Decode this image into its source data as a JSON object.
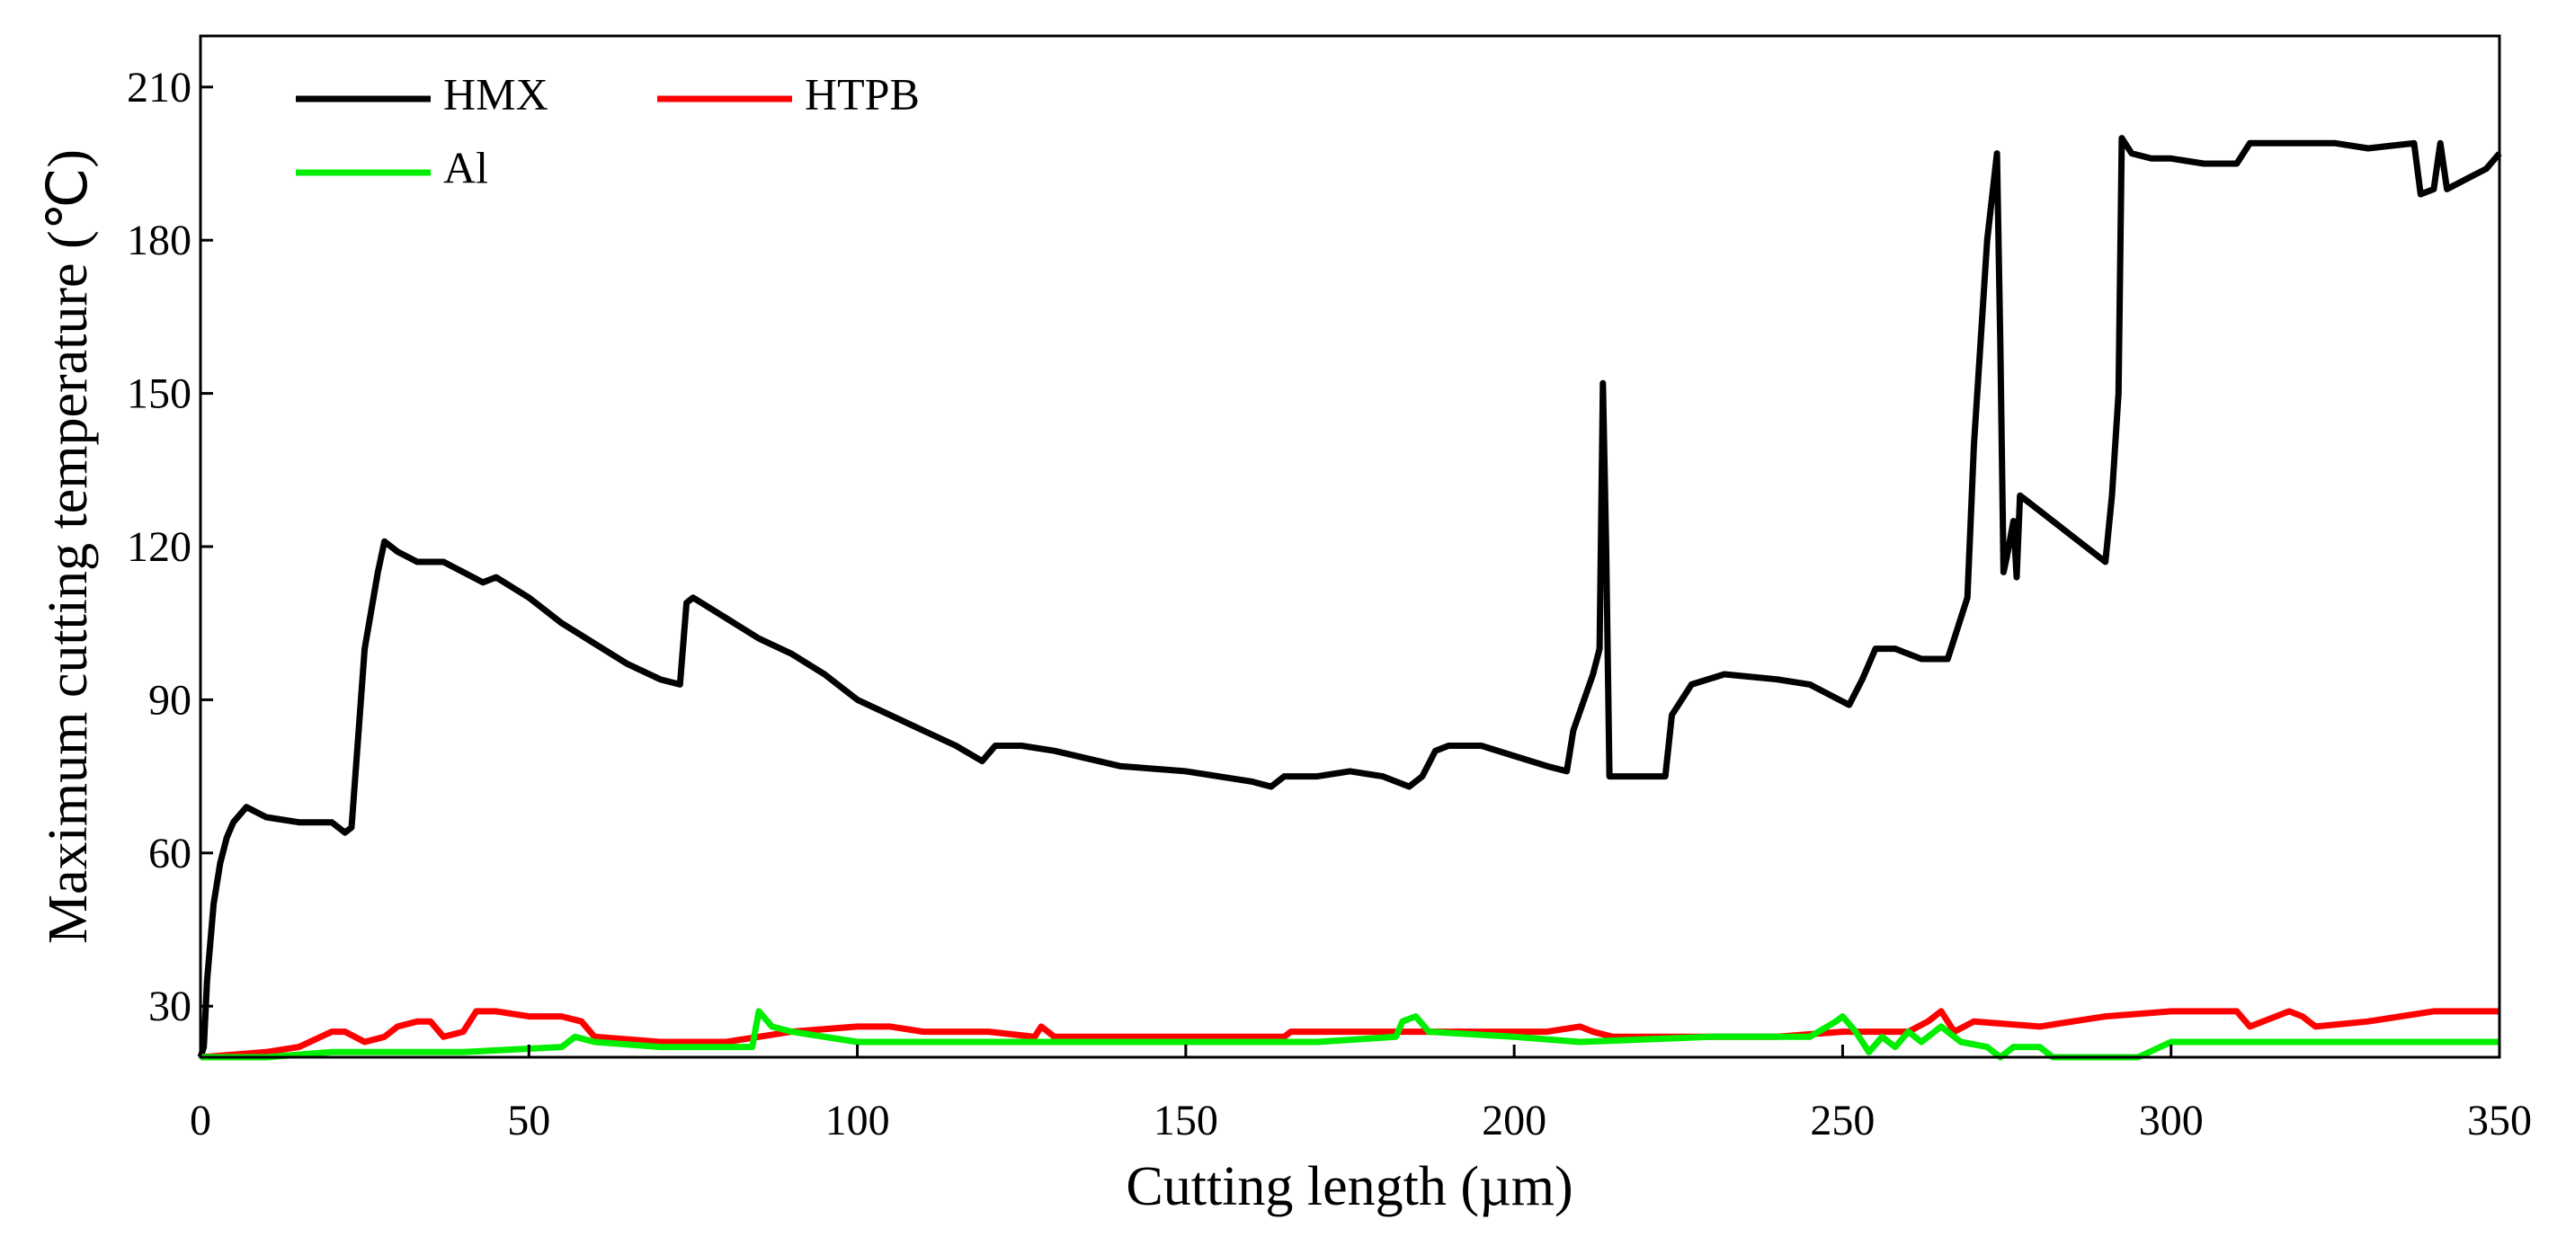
{
  "chart_data": {
    "type": "line",
    "x_label": "Cutting length (µm)",
    "y_label": "Maximum cutting temperature (℃)",
    "xlim": [
      0,
      350
    ],
    "ylim": [
      20,
      220
    ],
    "xticks": [
      0,
      50,
      100,
      150,
      200,
      250,
      300,
      350
    ],
    "yticks": [
      30,
      60,
      90,
      120,
      150,
      180,
      210
    ],
    "grid": false,
    "legend": "upper left",
    "series": [
      {
        "name": "HMX",
        "color": "#000000",
        "x": [
          0,
          0.5,
          1,
          2,
          3,
          4,
          5,
          7,
          10,
          15,
          20,
          22,
          23,
          25,
          27,
          28,
          30,
          33,
          37,
          40,
          43,
          45,
          50,
          55,
          60,
          65,
          70,
          73,
          74,
          75,
          80,
          85,
          90,
          95,
          100,
          105,
          110,
          115,
          119,
          121,
          125,
          130,
          140,
          150,
          160,
          163,
          165,
          170,
          175,
          180,
          184,
          186,
          188,
          190,
          195,
          200,
          205,
          208,
          209,
          212,
          213,
          213.5,
          214,
          214.5,
          216,
          223,
          224,
          227,
          232,
          240,
          245,
          251,
          253,
          255,
          258,
          262,
          266,
          269,
          270,
          272,
          273.5,
          274,
          274.5,
          275,
          276,
          276.5,
          277,
          280,
          285,
          290,
          291,
          292,
          292.5,
          294,
          297,
          300,
          305,
          310,
          312,
          320,
          325,
          330,
          337,
          338,
          340,
          341,
          342,
          345,
          348,
          350
        ],
        "values": [
          20,
          22,
          35,
          50,
          58,
          63,
          66,
          69,
          67,
          66,
          66,
          64,
          65,
          100,
          115,
          121,
          119,
          117,
          117,
          115,
          113,
          114,
          110,
          105,
          101,
          97,
          94,
          93,
          109,
          110,
          106,
          102,
          99,
          95,
          90,
          87,
          84,
          81,
          78,
          81,
          81,
          80,
          77,
          76,
          74,
          73,
          75,
          75,
          76,
          75,
          73,
          75,
          80,
          81,
          81,
          79,
          77,
          76,
          84,
          95,
          100,
          152,
          120,
          75,
          75,
          75,
          87,
          93,
          95,
          94,
          93,
          89,
          94,
          100,
          100,
          98,
          98,
          110,
          140,
          180,
          197,
          160,
          115,
          118,
          125,
          114,
          130,
          127,
          122,
          117,
          130,
          150,
          200,
          197,
          196,
          196,
          195,
          195,
          199,
          199,
          199,
          198,
          199,
          189,
          190,
          199,
          190,
          192,
          194,
          197
        ]
      },
      {
        "name": "HTPB",
        "color": "#ff0000",
        "x": [
          0,
          10,
          15,
          20,
          22,
          25,
          28,
          30,
          33,
          35,
          37,
          40,
          42,
          45,
          50,
          55,
          58,
          60,
          70,
          75,
          80,
          85,
          90,
          100,
          105,
          110,
          120,
          127,
          128,
          130,
          150,
          165,
          166,
          170,
          180,
          185,
          205,
          210,
          212,
          215,
          240,
          250,
          260,
          263,
          265,
          267,
          270,
          280,
          290,
          300,
          310,
          312,
          318,
          320,
          322,
          330,
          340,
          350
        ],
        "values": [
          20,
          21,
          22,
          25,
          25,
          23,
          24,
          26,
          27,
          27,
          24,
          25,
          29,
          29,
          28,
          28,
          27,
          24,
          23,
          23,
          23,
          24,
          25,
          26,
          26,
          25,
          25,
          24,
          26,
          24,
          24,
          24,
          25,
          25,
          25,
          25,
          25,
          26,
          25,
          24,
          24,
          25,
          25,
          27,
          29,
          25,
          27,
          26,
          28,
          29,
          29,
          26,
          29,
          28,
          26,
          27,
          29,
          29
        ]
      },
      {
        "name": "Al",
        "color": "#00ee00",
        "x": [
          0,
          10,
          20,
          40,
          55,
          57,
          60,
          70,
          84,
          85,
          87,
          90,
          100,
          110,
          120,
          130,
          150,
          170,
          182,
          183,
          185,
          187,
          200,
          210,
          230,
          245,
          249,
          250,
          252,
          254,
          256,
          258,
          260,
          262,
          265,
          268,
          272,
          274,
          276,
          280,
          282,
          290,
          295,
          300,
          310,
          320,
          330,
          340,
          350
        ],
        "values": [
          20,
          20,
          21,
          21,
          22,
          24,
          23,
          22,
          22,
          29,
          26,
          25,
          23,
          23,
          23,
          23,
          23,
          23,
          24,
          27,
          28,
          25,
          24,
          23,
          24,
          24,
          27,
          28,
          25,
          21,
          24,
          22,
          25,
          23,
          26,
          23,
          22,
          20,
          22,
          22,
          20,
          20,
          20,
          23,
          23,
          23,
          23,
          23,
          23
        ]
      }
    ]
  }
}
